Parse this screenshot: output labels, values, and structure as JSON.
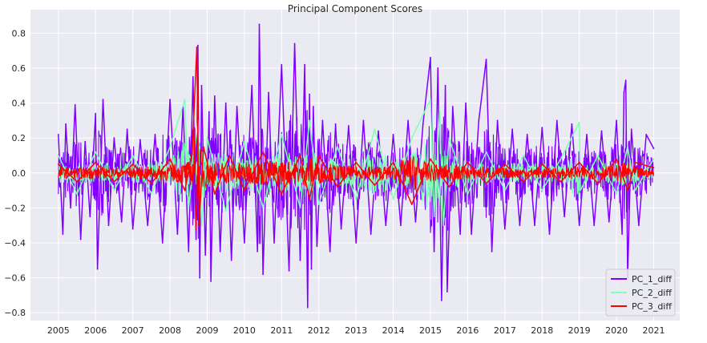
{
  "chart_data": {
    "type": "line",
    "title": "Principal Component Scores",
    "xlabel": "",
    "ylabel": "",
    "x_ticks": [
      "2005",
      "2006",
      "2007",
      "2008",
      "2009",
      "2010",
      "2011",
      "2012",
      "2013",
      "2014",
      "2015",
      "2016",
      "2017",
      "2018",
      "2019",
      "2020",
      "2021"
    ],
    "y_ticks": [
      "−0.8",
      "−0.6",
      "−0.4",
      "−0.2",
      "0.0",
      "0.2",
      "0.4",
      "0.6",
      "0.8"
    ],
    "y_tick_values": [
      -0.8,
      -0.6,
      -0.4,
      -0.2,
      0.0,
      0.2,
      0.4,
      0.6,
      0.8
    ],
    "xlim": [
      2004.25,
      2021.7
    ],
    "ylim": [
      -0.845,
      0.935
    ],
    "grid": true,
    "legend_position": "bottom-right",
    "series": [
      {
        "name": "PC_1_diff",
        "color": "#8000ff",
        "width": 1.5,
        "x": [
          2005.0,
          2005.12,
          2005.2,
          2005.33,
          2005.45,
          2005.6,
          2005.72,
          2005.85,
          2006.0,
          2006.05,
          2006.2,
          2006.35,
          2006.5,
          2006.7,
          2006.85,
          2007.0,
          2007.2,
          2007.4,
          2007.6,
          2007.8,
          2008.0,
          2008.2,
          2008.35,
          2008.5,
          2008.62,
          2008.7,
          2008.75,
          2008.8,
          2008.85,
          2008.95,
          2009.05,
          2009.1,
          2009.2,
          2009.35,
          2009.5,
          2009.65,
          2009.8,
          2010.0,
          2010.2,
          2010.35,
          2010.4,
          2010.5,
          2010.65,
          2010.8,
          2011.0,
          2011.2,
          2011.35,
          2011.5,
          2011.62,
          2011.7,
          2011.75,
          2011.8,
          2011.85,
          2011.95,
          2012.1,
          2012.3,
          2012.45,
          2012.6,
          2012.8,
          2013.0,
          2013.2,
          2013.4,
          2013.6,
          2013.8,
          2014.0,
          2014.2,
          2014.4,
          2014.6,
          2014.8,
          2015.0,
          2015.1,
          2015.2,
          2015.3,
          2015.4,
          2015.45,
          2015.6,
          2015.8,
          2015.95,
          2016.1,
          2016.3,
          2016.5,
          2016.65,
          2016.8,
          2017.0,
          2017.2,
          2017.4,
          2017.6,
          2017.8,
          2018.0,
          2018.2,
          2018.4,
          2018.6,
          2018.8,
          2019.0,
          2019.2,
          2019.4,
          2019.6,
          2019.8,
          2020.0,
          2020.15,
          2020.2,
          2020.25,
          2020.3,
          2020.4,
          2020.6,
          2020.8,
          2021.0
        ],
        "values": [
          0.22,
          -0.35,
          0.28,
          -0.2,
          0.39,
          -0.38,
          0.18,
          -0.25,
          0.34,
          -0.55,
          0.42,
          -0.3,
          0.2,
          -0.28,
          0.25,
          -0.32,
          0.19,
          -0.3,
          0.22,
          -0.4,
          0.42,
          -0.35,
          0.38,
          -0.45,
          0.55,
          -0.38,
          0.73,
          -0.6,
          0.5,
          -0.47,
          0.35,
          -0.62,
          0.44,
          -0.45,
          0.4,
          -0.5,
          0.38,
          -0.4,
          0.5,
          -0.45,
          0.85,
          -0.58,
          0.46,
          -0.4,
          0.62,
          -0.56,
          0.74,
          -0.5,
          0.62,
          -0.77,
          0.45,
          -0.55,
          0.38,
          -0.42,
          0.3,
          -0.45,
          0.28,
          -0.32,
          0.27,
          -0.4,
          0.3,
          -0.35,
          0.24,
          -0.3,
          0.22,
          -0.3,
          0.3,
          -0.28,
          0.28,
          0.66,
          -0.45,
          0.6,
          -0.73,
          0.5,
          -0.68,
          0.38,
          -0.35,
          0.4,
          -0.35,
          0.3,
          0.65,
          -0.45,
          0.3,
          -0.32,
          0.25,
          -0.3,
          0.22,
          -0.3,
          0.26,
          -0.35,
          0.3,
          -0.25,
          0.28,
          -0.3,
          0.22,
          -0.3,
          0.24,
          -0.28,
          0.3,
          -0.35,
          0.46,
          0.53,
          -0.6,
          0.25,
          -0.3,
          0.22,
          0.14
        ]
      },
      {
        "name": "PC_2_diff",
        "color": "#80ffb4",
        "width": 1.5,
        "x": [
          2005.0,
          2005.5,
          2006.0,
          2006.5,
          2007.0,
          2007.5,
          2008.0,
          2008.4,
          2008.5,
          2008.75,
          2008.85,
          2009.0,
          2009.5,
          2010.0,
          2010.5,
          2011.0,
          2011.5,
          2011.75,
          2012.0,
          2012.5,
          2013.0,
          2013.5,
          2014.0,
          2014.5,
          2015.0,
          2015.1,
          2015.25,
          2015.35,
          2015.5,
          2016.0,
          2016.5,
          2017.0,
          2017.5,
          2018.0,
          2018.5,
          2019.0,
          2019.03,
          2019.5,
          2020.0,
          2020.3,
          2020.5,
          2021.0
        ],
        "values": [
          0.1,
          -0.12,
          0.12,
          -0.1,
          0.1,
          -0.12,
          0.15,
          0.42,
          -0.2,
          0.3,
          -0.3,
          0.2,
          -0.22,
          0.18,
          -0.2,
          0.22,
          -0.2,
          0.3,
          -0.18,
          0.15,
          -0.15,
          0.25,
          -0.15,
          0.2,
          0.42,
          -0.25,
          0.35,
          -0.3,
          0.2,
          -0.12,
          0.12,
          -0.1,
          0.1,
          -0.1,
          0.08,
          0.29,
          -0.1,
          0.1,
          -0.12,
          0.15,
          -0.1,
          0.08
        ]
      },
      {
        "name": "PC_3_diff",
        "color": "#ff0000",
        "width": 1.5,
        "x": [
          2005.0,
          2005.5,
          2006.0,
          2006.5,
          2007.0,
          2007.5,
          2008.0,
          2008.4,
          2008.6,
          2008.72,
          2008.78,
          2008.9,
          2009.2,
          2009.6,
          2010.0,
          2010.5,
          2011.0,
          2011.5,
          2011.75,
          2012.0,
          2012.5,
          2013.0,
          2013.5,
          2014.0,
          2014.5,
          2015.0,
          2015.5,
          2016.0,
          2016.5,
          2017.0,
          2017.5,
          2018.0,
          2018.5,
          2019.0,
          2019.5,
          2020.0,
          2020.3,
          2020.5,
          2021.0
        ],
        "values": [
          0.05,
          -0.05,
          0.06,
          -0.05,
          0.05,
          -0.06,
          0.08,
          -0.1,
          0.12,
          0.72,
          -0.3,
          0.15,
          -0.12,
          0.1,
          -0.1,
          0.12,
          -0.12,
          0.1,
          -0.15,
          0.1,
          -0.08,
          0.06,
          -0.07,
          0.06,
          -0.18,
          0.08,
          -0.08,
          0.06,
          -0.06,
          0.05,
          -0.05,
          0.05,
          -0.05,
          0.06,
          -0.06,
          0.08,
          -0.1,
          0.06,
          0.03
        ]
      }
    ]
  }
}
